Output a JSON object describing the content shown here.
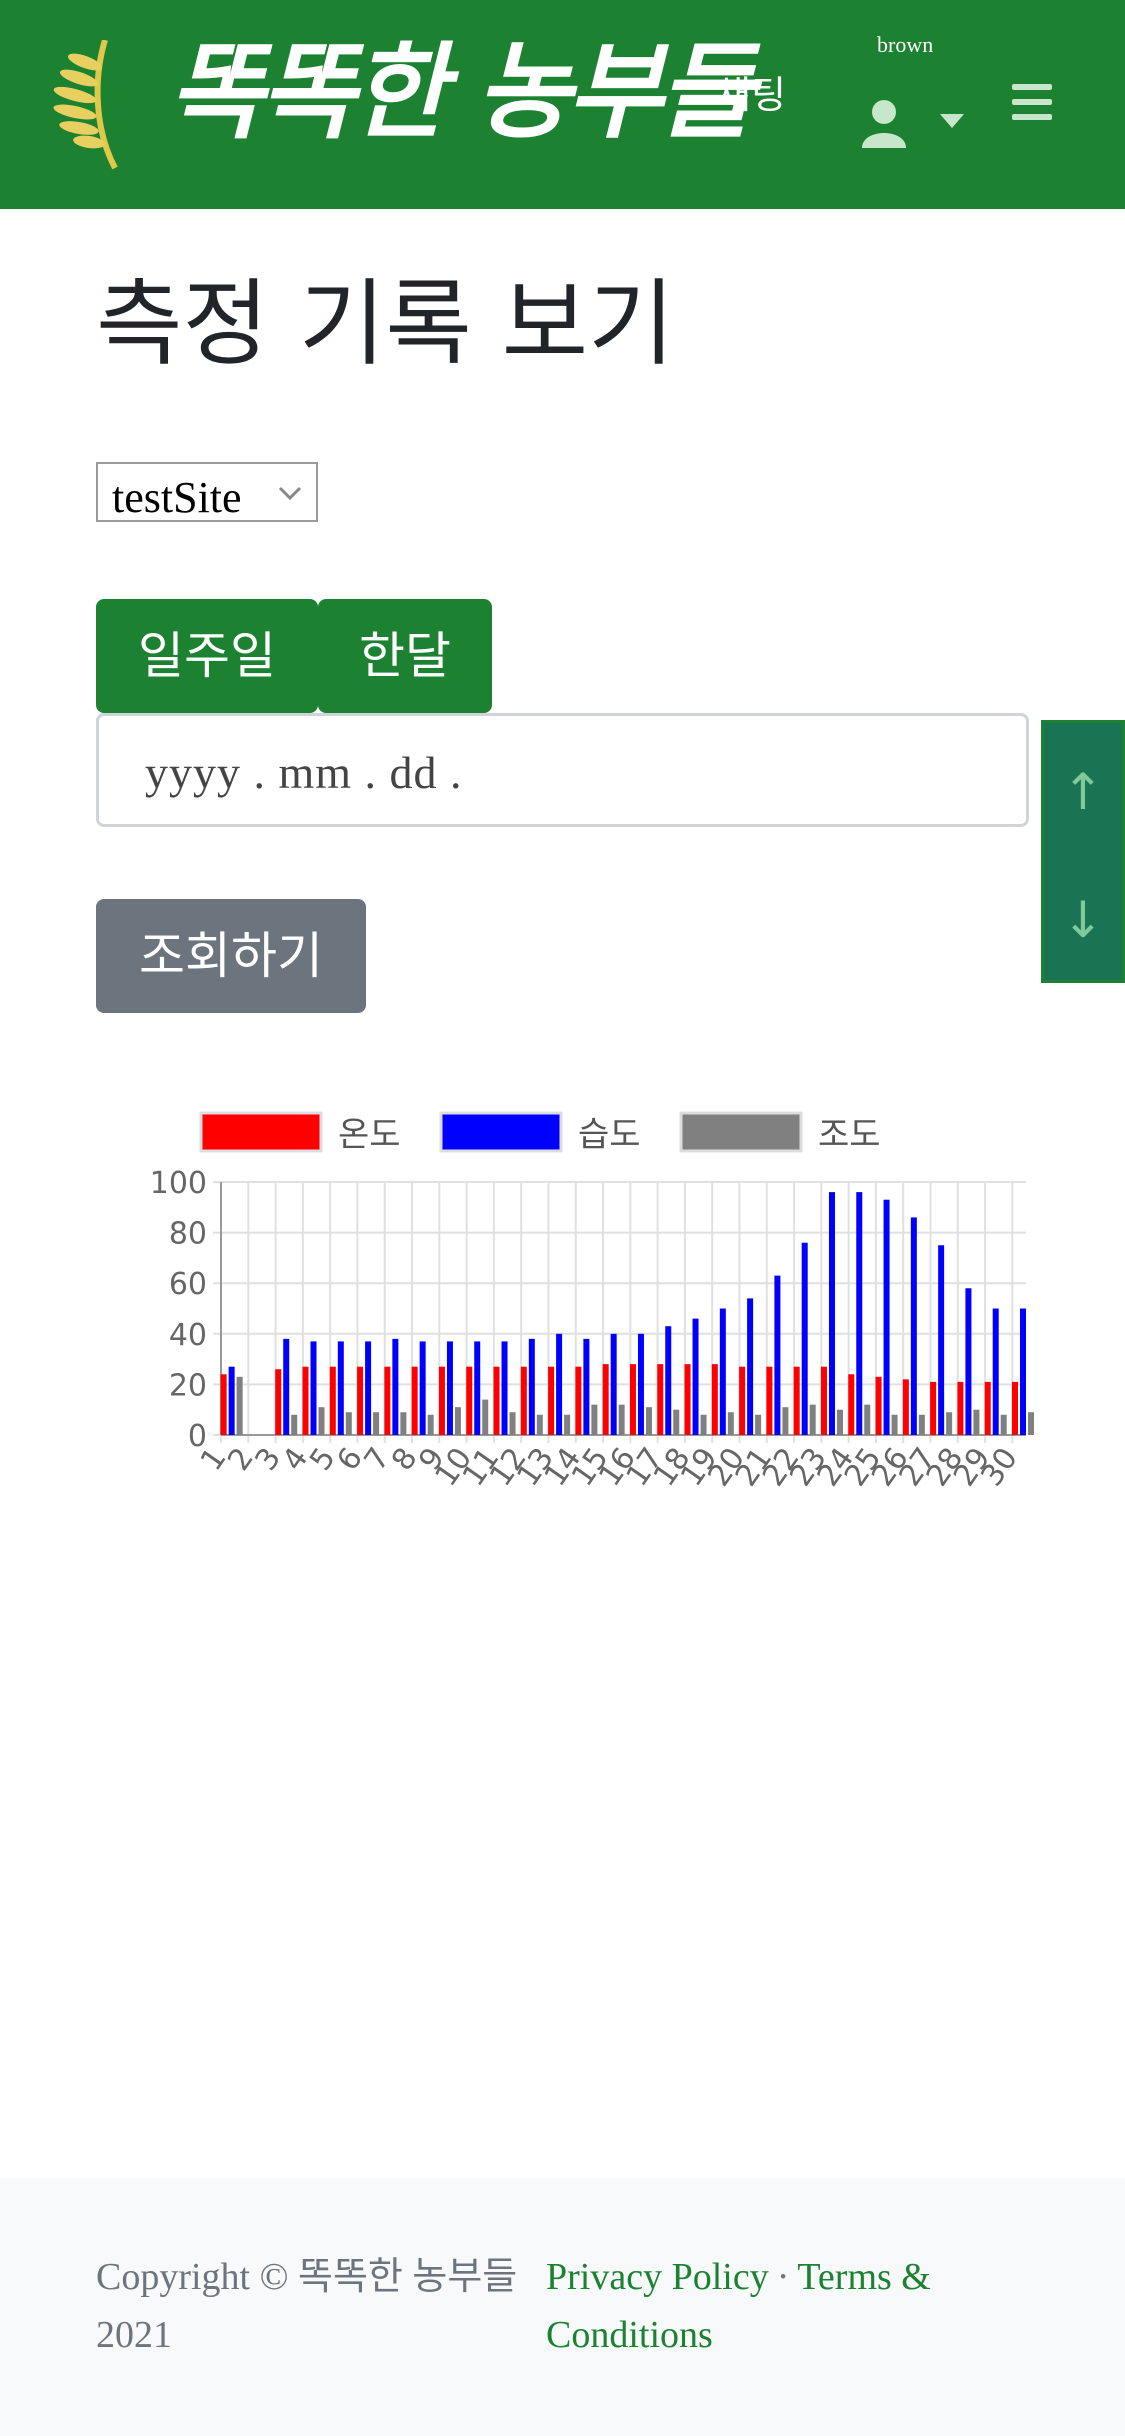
{
  "navbar": {
    "logo_text": "똑똑한 농부들",
    "chat_label": "채팅",
    "username": "brown",
    "brand_color": "#1c8232"
  },
  "main": {
    "title": "측정 기록 보기",
    "site_select": {
      "selected": "testSite"
    },
    "range_buttons": {
      "week": "일주일",
      "month": "한달"
    },
    "date_placeholder": "yyyy .  mm .  dd .",
    "search_label": "조회하기",
    "scroll_up": "↑",
    "scroll_down": "↓"
  },
  "chart_data": {
    "type": "bar",
    "categories": [
      "1",
      "2",
      "3",
      "4",
      "5",
      "6",
      "7",
      "8",
      "9",
      "10",
      "11",
      "12",
      "13",
      "14",
      "15",
      "16",
      "17",
      "18",
      "19",
      "20",
      "21",
      "22",
      "23",
      "24",
      "25",
      "26",
      "27",
      "28",
      "29",
      "30"
    ],
    "series": [
      {
        "name": "온도",
        "color": "#ff0000",
        "values": [
          24,
          0,
          26,
          27,
          27,
          27,
          27,
          27,
          27,
          27,
          27,
          27,
          27,
          27,
          28,
          28,
          28,
          28,
          28,
          27,
          27,
          27,
          27,
          24,
          23,
          22,
          21,
          21,
          21,
          21
        ]
      },
      {
        "name": "습도",
        "color": "#0000ff",
        "values": [
          27,
          0,
          38,
          37,
          37,
          37,
          38,
          37,
          37,
          37,
          37,
          38,
          40,
          38,
          40,
          40,
          43,
          46,
          50,
          54,
          63,
          76,
          96,
          96,
          93,
          86,
          75,
          58,
          50,
          50
        ]
      },
      {
        "name": "조도",
        "color": "#808080",
        "values": [
          23,
          0,
          8,
          11,
          9,
          9,
          9,
          8,
          11,
          14,
          9,
          8,
          8,
          12,
          12,
          11,
          10,
          8,
          9,
          8,
          11,
          12,
          10,
          12,
          8,
          8,
          9,
          10,
          8,
          9
        ]
      }
    ],
    "ylim": [
      0,
      100
    ],
    "yticks": [
      "0",
      "20",
      "40",
      "60",
      "80",
      "100"
    ],
    "legend_position": "top",
    "grid": true
  },
  "footer": {
    "copyright": "Copyright © 똑똑한 농부들 2021",
    "privacy": "Privacy Policy",
    "separator": "·",
    "terms": "Terms & Conditions"
  }
}
